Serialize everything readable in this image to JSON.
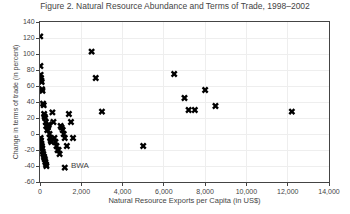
{
  "chart_data": {
    "type": "scatter",
    "title": "Figure 2. Natural Resource Abundance and Terms of Trade, 1998–2002",
    "xlabel": "Natural Resource Exports per Capita (in US$)",
    "ylabel": "Change in terms of trade (in percent)",
    "x": [
      10,
      20,
      30,
      50,
      60,
      80,
      100,
      120,
      150,
      180,
      200,
      220,
      250,
      280,
      300,
      30,
      50,
      70,
      90,
      110,
      130,
      160,
      190,
      210,
      240,
      260,
      290,
      310,
      350,
      380,
      400,
      430,
      460,
      490,
      520,
      550,
      600,
      650,
      700,
      750,
      800,
      850,
      900,
      950,
      1000,
      1050,
      1100,
      1150,
      1200,
      1300,
      1400,
      1500,
      1600,
      2500,
      2700,
      3000,
      5000,
      6500,
      7000,
      7200,
      7500,
      8000,
      8500,
      12200,
      1200
    ],
    "values": [
      122,
      85,
      74,
      70,
      67,
      65,
      56,
      54,
      38,
      36,
      25,
      22,
      20,
      15,
      10,
      -5,
      -8,
      -12,
      -15,
      -18,
      -22,
      -25,
      -28,
      -30,
      -32,
      -35,
      -38,
      -40,
      5,
      8,
      10,
      12,
      0,
      -5,
      -8,
      -10,
      27,
      15,
      -5,
      -10,
      -15,
      -20,
      -20,
      -25,
      10,
      8,
      5,
      0,
      -5,
      -15,
      25,
      15,
      -5,
      103,
      70,
      28,
      -15,
      75,
      45,
      30,
      30,
      55,
      35,
      28,
      -42
    ],
    "annotations": [
      {
        "text": "BWA",
        "x": 1200,
        "y": -42
      }
    ],
    "marker": "x",
    "color": "#000000",
    "xlim": [
      0,
      14000
    ],
    "ylim": [
      -60,
      140
    ],
    "xticks": [
      0,
      {
        "value": 2000,
        "label": "2,000"
      },
      {
        "value": 4000,
        "label": "4,000"
      },
      {
        "value": 6000,
        "label": "6,000"
      },
      {
        "value": 8000,
        "label": "8,000"
      },
      {
        "value": 10000,
        "label": "10,000"
      },
      {
        "value": 12000,
        "label": "12,000"
      },
      {
        "value": 14000,
        "label": "14,000"
      }
    ],
    "yticks": [
      -60,
      -40,
      -20,
      0,
      20,
      40,
      60,
      80,
      100,
      120,
      140
    ],
    "grid": true
  }
}
